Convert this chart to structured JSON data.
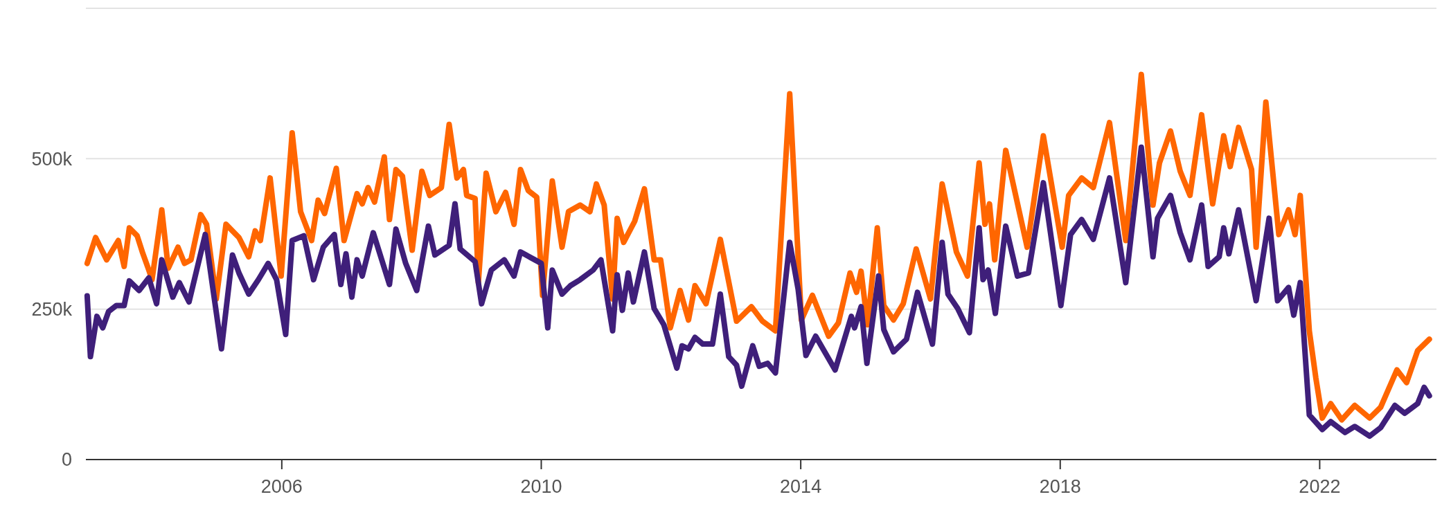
{
  "chart_data": {
    "type": "line",
    "xlim": [
      2002.98,
      2023.8
    ],
    "xticks": [
      2006,
      2010,
      2014,
      2018,
      2022
    ],
    "ylim": [
      0,
      750000
    ],
    "yticks": [
      0,
      {
        "value": 250000,
        "label": "250k"
      },
      {
        "value": 500000,
        "label": "500k"
      },
      {
        "value": 750000,
        "label": null
      }
    ],
    "grid": "y",
    "marker": "none",
    "line_style": "solid",
    "series": [
      {
        "color": "#ff6600",
        "x": [
          2003.0,
          2003.13,
          2003.3,
          2003.48,
          2003.57,
          2003.65,
          2003.77,
          2003.85,
          2003.95,
          2004.0,
          2004.15,
          2004.25,
          2004.4,
          2004.5,
          2004.6,
          2004.75,
          2004.84,
          2004.99,
          2005.14,
          2005.34,
          2005.49,
          2005.59,
          2005.67,
          2005.82,
          2005.99,
          2006.16,
          2006.29,
          2006.46,
          2006.56,
          2006.66,
          2006.84,
          2006.96,
          2007.16,
          2007.24,
          2007.33,
          2007.43,
          2007.58,
          2007.66,
          2007.76,
          2007.86,
          2008.01,
          2008.16,
          2008.28,
          2008.46,
          2008.58,
          2008.7,
          2008.8,
          2008.85,
          2008.98,
          2009.03,
          2009.15,
          2009.3,
          2009.45,
          2009.58,
          2009.68,
          2009.8,
          2009.93,
          2010.02,
          2010.17,
          2010.32,
          2010.42,
          2010.6,
          2010.75,
          2010.85,
          2010.97,
          2011.1,
          2011.17,
          2011.27,
          2011.44,
          2011.59,
          2011.74,
          2011.84,
          2011.99,
          2012.14,
          2012.27,
          2012.37,
          2012.54,
          2012.76,
          2013.01,
          2013.24,
          2013.41,
          2013.61,
          2013.83,
          2014.01,
          2014.18,
          2014.43,
          2014.58,
          2014.76,
          2014.86,
          2014.93,
          2015.03,
          2015.18,
          2015.28,
          2015.43,
          2015.58,
          2015.78,
          2016.0,
          2016.18,
          2016.4,
          2016.57,
          2016.75,
          2016.84,
          2016.91,
          2016.99,
          2017.16,
          2017.49,
          2017.74,
          2018.03,
          2018.13,
          2018.33,
          2018.51,
          2018.76,
          2019.01,
          2019.25,
          2019.43,
          2019.53,
          2019.7,
          2019.85,
          2020.0,
          2020.18,
          2020.35,
          2020.52,
          2020.62,
          2020.75,
          2020.95,
          2021.02,
          2021.17,
          2021.37,
          2021.52,
          2021.62,
          2021.7,
          2021.84,
          2021.94,
          2022.04,
          2022.17,
          2022.34,
          2022.54,
          2022.77,
          2022.94,
          2023.19,
          2023.34,
          2023.51,
          2023.69
        ],
        "values": [
          326000,
          369000,
          332000,
          364000,
          321000,
          385000,
          372000,
          345000,
          315000,
          299000,
          415000,
          318000,
          353000,
          326000,
          332000,
          407000,
          391000,
          267000,
          391000,
          369000,
          337000,
          380000,
          364000,
          468000,
          305000,
          543000,
          412000,
          364000,
          431000,
          409000,
          484000,
          364000,
          442000,
          425000,
          452000,
          428000,
          503000,
          399000,
          482000,
          471000,
          348000,
          479000,
          439000,
          452000,
          557000,
          468000,
          482000,
          439000,
          434000,
          294000,
          476000,
          412000,
          444000,
          391000,
          482000,
          447000,
          436000,
          273000,
          463000,
          353000,
          412000,
          423000,
          412000,
          458000,
          423000,
          267000,
          401000,
          361000,
          396000,
          450000,
          332000,
          332000,
          219000,
          281000,
          232000,
          289000,
          259000,
          366000,
          230000,
          254000,
          230000,
          214000,
          608000,
          232000,
          273000,
          205000,
          227000,
          310000,
          278000,
          313000,
          224000,
          385000,
          256000,
          232000,
          259000,
          350000,
          267000,
          458000,
          345000,
          305000,
          493000,
          391000,
          425000,
          332000,
          514000,
          353000,
          538000,
          353000,
          439000,
          468000,
          452000,
          560000,
          364000,
          640000,
          423000,
          493000,
          546000,
          479000,
          439000,
          573000,
          425000,
          538000,
          487000,
          552000,
          482000,
          353000,
          594000,
          374000,
          415000,
          374000,
          439000,
          214000,
          136000,
          69000,
          93000,
          66000,
          90000,
          69000,
          87000,
          149000,
          128000,
          181000,
          200000
        ]
      },
      {
        "color": "#3f1f7a",
        "x": [
          2003.0,
          2003.05,
          2003.15,
          2003.24,
          2003.33,
          2003.45,
          2003.57,
          2003.65,
          2003.8,
          2003.95,
          2004.07,
          2004.15,
          2004.32,
          2004.42,
          2004.57,
          2004.82,
          2005.07,
          2005.24,
          2005.34,
          2005.49,
          2005.64,
          2005.79,
          2005.92,
          2006.06,
          2006.16,
          2006.34,
          2006.49,
          2006.64,
          2006.81,
          2006.91,
          2006.99,
          2007.08,
          2007.16,
          2007.24,
          2007.41,
          2007.66,
          2007.76,
          2007.91,
          2008.08,
          2008.26,
          2008.36,
          2008.58,
          2008.67,
          2008.75,
          2008.98,
          2009.08,
          2009.23,
          2009.43,
          2009.58,
          2009.68,
          2009.9,
          2010.0,
          2010.1,
          2010.17,
          2010.32,
          2010.45,
          2010.6,
          2010.8,
          2010.92,
          2011.1,
          2011.17,
          2011.25,
          2011.34,
          2011.42,
          2011.59,
          2011.74,
          2011.89,
          2012.09,
          2012.17,
          2012.27,
          2012.37,
          2012.49,
          2012.64,
          2012.76,
          2012.89,
          2013.01,
          2013.09,
          2013.26,
          2013.36,
          2013.49,
          2013.61,
          2013.83,
          2013.96,
          2014.08,
          2014.23,
          2014.53,
          2014.78,
          2014.83,
          2014.93,
          2015.02,
          2015.2,
          2015.28,
          2015.43,
          2015.63,
          2015.8,
          2016.03,
          2016.18,
          2016.27,
          2016.42,
          2016.6,
          2016.75,
          2016.81,
          2016.89,
          2017.0,
          2017.16,
          2017.34,
          2017.51,
          2017.74,
          2018.01,
          2018.16,
          2018.33,
          2018.51,
          2018.76,
          2019.01,
          2019.25,
          2019.43,
          2019.5,
          2019.7,
          2019.85,
          2020.0,
          2020.18,
          2020.28,
          2020.45,
          2020.52,
          2020.6,
          2020.75,
          2021.02,
          2021.22,
          2021.35,
          2021.52,
          2021.6,
          2021.7,
          2021.84,
          2022.04,
          2022.17,
          2022.39,
          2022.54,
          2022.77,
          2022.94,
          2023.16,
          2023.31,
          2023.51,
          2023.61,
          2023.69
        ],
        "values": [
          272000,
          171000,
          238000,
          219000,
          246000,
          256000,
          256000,
          297000,
          281000,
          302000,
          259000,
          332000,
          270000,
          294000,
          262000,
          374000,
          184000,
          340000,
          310000,
          275000,
          299000,
          326000,
          299000,
          208000,
          364000,
          372000,
          299000,
          353000,
          374000,
          291000,
          342000,
          270000,
          332000,
          305000,
          377000,
          291000,
          383000,
          326000,
          281000,
          388000,
          340000,
          356000,
          425000,
          350000,
          329000,
          259000,
          315000,
          332000,
          305000,
          345000,
          332000,
          326000,
          219000,
          315000,
          275000,
          289000,
          299000,
          315000,
          332000,
          214000,
          307000,
          248000,
          310000,
          262000,
          345000,
          251000,
          224000,
          152000,
          189000,
          184000,
          203000,
          192000,
          192000,
          275000,
          171000,
          157000,
          122000,
          189000,
          155000,
          160000,
          144000,
          361000,
          283000,
          173000,
          205000,
          149000,
          238000,
          219000,
          254000,
          160000,
          305000,
          216000,
          179000,
          200000,
          278000,
          192000,
          361000,
          275000,
          251000,
          211000,
          385000,
          299000,
          315000,
          243000,
          388000,
          305000,
          310000,
          460000,
          256000,
          374000,
          399000,
          366000,
          468000,
          294000,
          519000,
          337000,
          401000,
          439000,
          377000,
          332000,
          423000,
          321000,
          337000,
          385000,
          342000,
          415000,
          264000,
          401000,
          264000,
          286000,
          240000,
          294000,
          74000,
          50000,
          63000,
          45000,
          55000,
          39000,
          53000,
          90000,
          77000,
          93000,
          120000,
          106000
        ]
      }
    ]
  }
}
